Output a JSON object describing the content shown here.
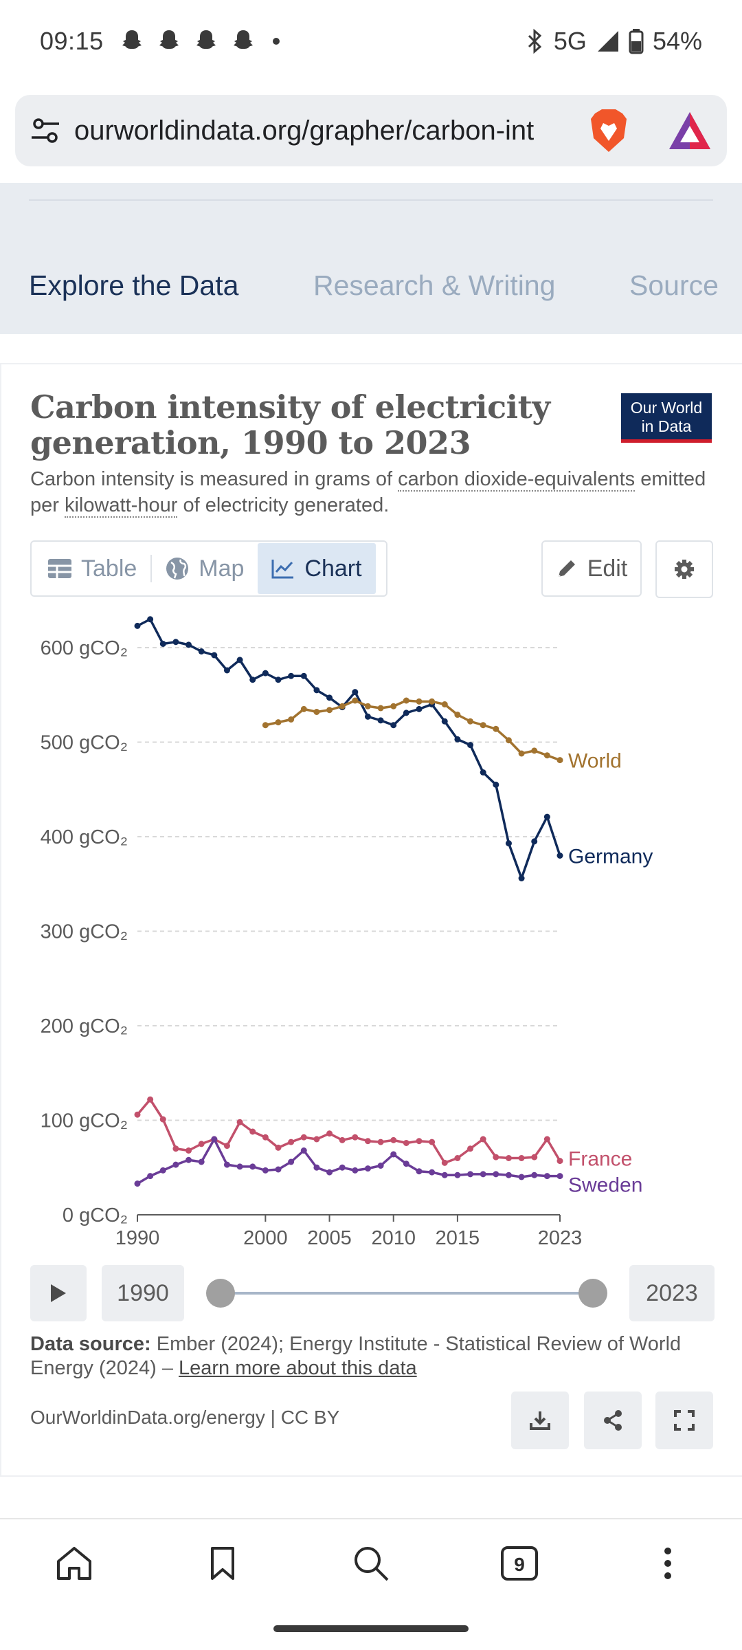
{
  "status_bar": {
    "time": "09:15",
    "network": "5G",
    "battery": "54%"
  },
  "browser": {
    "url": "ourworldindata.org/grapher/carbon-int",
    "tab_count": "9"
  },
  "nav_tabs": [
    {
      "label": "Explore the Data"
    },
    {
      "label": "Research & Writing"
    },
    {
      "label": "Source"
    }
  ],
  "chart_card": {
    "title": "Carbon intensity of electricity generation, 1990 to 2023",
    "logo_line1": "Our World",
    "logo_line2": "in Data",
    "subtitle_pre": "Carbon intensity is measured in grams of ",
    "subtitle_link1": "carbon dioxide-equivalents",
    "subtitle_mid": " emitted per ",
    "subtitle_link2": "kilowatt-hour",
    "subtitle_post": " of electricity generated.",
    "tabs": {
      "table": "Table",
      "map": "Map",
      "chart": "Chart"
    },
    "edit_label": "Edit"
  },
  "timeline": {
    "start_year": "1990",
    "end_year": "2023"
  },
  "source": {
    "label": "Data source:",
    "text": " Ember (2024); Energy Institute - Statistical Review of World Energy (2024) – ",
    "link": "Learn more about this data"
  },
  "footer": {
    "credit": "OurWorldinData.org/energy | CC BY"
  },
  "colors": {
    "germany": "#0f2a5a",
    "world": "#a2732f",
    "france": "#c2506b",
    "sweden": "#6a3c97",
    "grid": "#d8d8d8"
  },
  "chart_data": {
    "type": "line",
    "title": "Carbon intensity of electricity generation, 1990 to 2023",
    "ylabel": "gCO₂",
    "ylim": [
      0,
      600
    ],
    "y_ticks": [
      0,
      100,
      200,
      300,
      400,
      500,
      600
    ],
    "y_tick_labels": [
      "0 gCO₂",
      "100 gCO₂",
      "200 gCO₂",
      "300 gCO₂",
      "400 gCO₂",
      "500 gCO₂",
      "600 gCO₂"
    ],
    "x_ticks": [
      "1990",
      "2000",
      "2005",
      "2010",
      "2015",
      "2023"
    ],
    "series": [
      {
        "name": "Germany",
        "start": 1990,
        "values": [
          623,
          630,
          604,
          606,
          603,
          596,
          592,
          576,
          587,
          566,
          573,
          566,
          570,
          570,
          555,
          547,
          537,
          553,
          527,
          523,
          518,
          531,
          535,
          540,
          522,
          503,
          497,
          468,
          455,
          393,
          356,
          395,
          421,
          380
        ]
      },
      {
        "name": "World",
        "start": 2000,
        "values": [
          518,
          521,
          524,
          535,
          532,
          534,
          538,
          544,
          538,
          536,
          538,
          544,
          543,
          543,
          540,
          529,
          522,
          518,
          514,
          502,
          488,
          491,
          486,
          481
        ]
      },
      {
        "name": "France",
        "start": 1990,
        "values": [
          106,
          122,
          101,
          70,
          68,
          75,
          80,
          73,
          98,
          88,
          82,
          71,
          77,
          82,
          80,
          86,
          79,
          82,
          78,
          77,
          79,
          76,
          78,
          77,
          55,
          60,
          70,
          80,
          61,
          60,
          60,
          61,
          80,
          57
        ]
      },
      {
        "name": "Sweden",
        "start": 1990,
        "values": [
          33,
          41,
          47,
          53,
          58,
          56,
          80,
          53,
          51,
          51,
          47,
          48,
          56,
          68,
          50,
          45,
          50,
          47,
          49,
          52,
          64,
          54,
          46,
          45,
          42,
          42,
          43,
          43,
          43,
          42,
          40,
          42,
          41,
          41
        ]
      }
    ]
  }
}
